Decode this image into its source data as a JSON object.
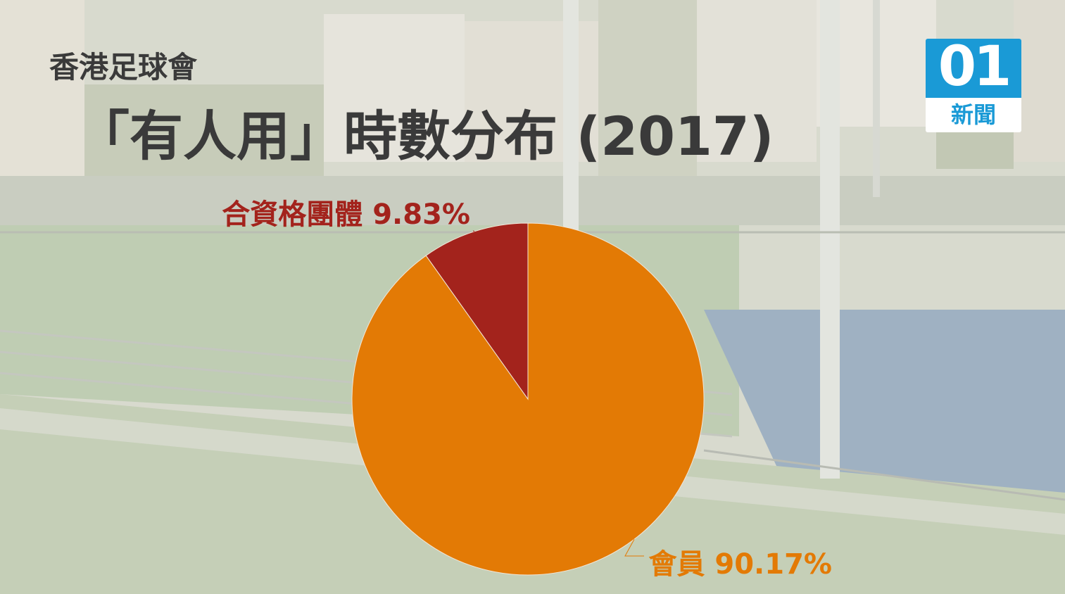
{
  "header": {
    "subtitle": "香港足球會",
    "title": "「有人用」時數分布 (2017)"
  },
  "logo": {
    "number": "01",
    "text": "新聞"
  },
  "colors": {
    "member": "#e37a05",
    "group": "#a3231c",
    "title": "#3a3a3a",
    "logo_blue": "#1a9ad6"
  },
  "chart_data": {
    "type": "pie",
    "title": "「有人用」時數分布 (2017)",
    "slices": [
      {
        "name": "會員",
        "value": 90.17,
        "label": "會員 90.17%",
        "color": "#e37a05"
      },
      {
        "name": "合資格團體",
        "value": 9.83,
        "label": "合資格團體 9.83%",
        "color": "#a3231c"
      }
    ]
  }
}
